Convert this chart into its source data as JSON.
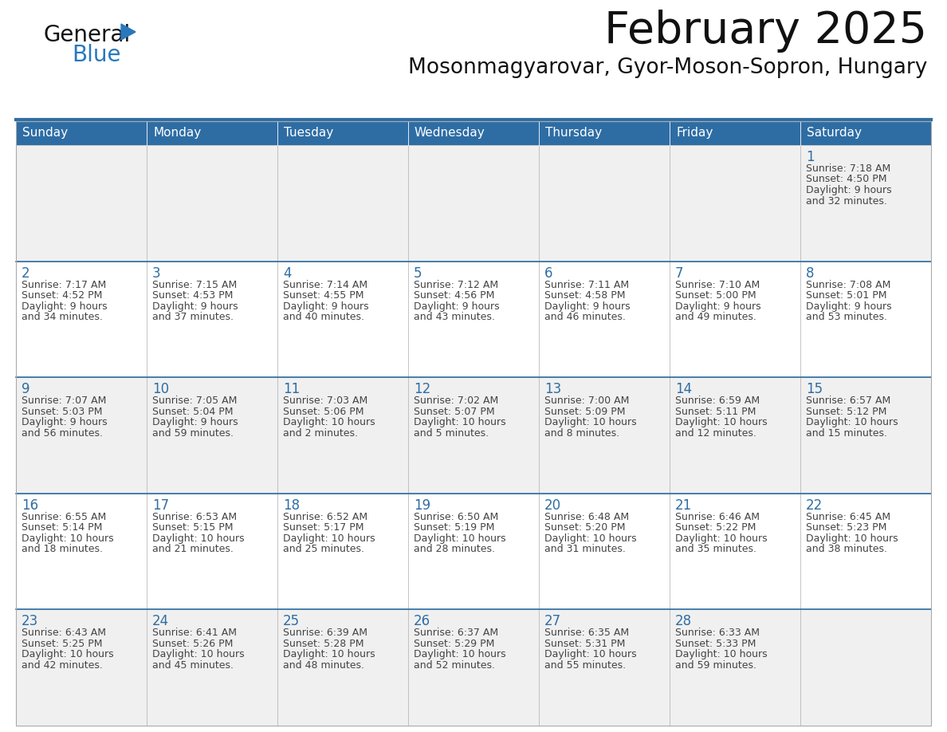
{
  "title": "February 2025",
  "subtitle": "Mosonmagyarovar, Gyor-Moson-Sopron, Hungary",
  "days_of_week": [
    "Sunday",
    "Monday",
    "Tuesday",
    "Wednesday",
    "Thursday",
    "Friday",
    "Saturday"
  ],
  "header_bg": "#2E6DA4",
  "header_text": "#FFFFFF",
  "row_bg_odd": "#F0F0F0",
  "row_bg_even": "#FFFFFF",
  "cell_border": "#AAAAAA",
  "day_number_color": "#2E6DA4",
  "text_color": "#444444",
  "title_color": "#111111",
  "subtitle_color": "#111111",
  "logo_text1_color": "#111111",
  "logo_text2_color": "#2878BE",
  "logo_triangle_color": "#2878BE",
  "calendar_data": [
    [
      null,
      null,
      null,
      null,
      null,
      null,
      {
        "day": 1,
        "sunrise": "7:18 AM",
        "sunset": "4:50 PM",
        "daylight_line1": "9 hours",
        "daylight_line2": "and 32 minutes."
      }
    ],
    [
      {
        "day": 2,
        "sunrise": "7:17 AM",
        "sunset": "4:52 PM",
        "daylight_line1": "9 hours",
        "daylight_line2": "and 34 minutes."
      },
      {
        "day": 3,
        "sunrise": "7:15 AM",
        "sunset": "4:53 PM",
        "daylight_line1": "9 hours",
        "daylight_line2": "and 37 minutes."
      },
      {
        "day": 4,
        "sunrise": "7:14 AM",
        "sunset": "4:55 PM",
        "daylight_line1": "9 hours",
        "daylight_line2": "and 40 minutes."
      },
      {
        "day": 5,
        "sunrise": "7:12 AM",
        "sunset": "4:56 PM",
        "daylight_line1": "9 hours",
        "daylight_line2": "and 43 minutes."
      },
      {
        "day": 6,
        "sunrise": "7:11 AM",
        "sunset": "4:58 PM",
        "daylight_line1": "9 hours",
        "daylight_line2": "and 46 minutes."
      },
      {
        "day": 7,
        "sunrise": "7:10 AM",
        "sunset": "5:00 PM",
        "daylight_line1": "9 hours",
        "daylight_line2": "and 49 minutes."
      },
      {
        "day": 8,
        "sunrise": "7:08 AM",
        "sunset": "5:01 PM",
        "daylight_line1": "9 hours",
        "daylight_line2": "and 53 minutes."
      }
    ],
    [
      {
        "day": 9,
        "sunrise": "7:07 AM",
        "sunset": "5:03 PM",
        "daylight_line1": "9 hours",
        "daylight_line2": "and 56 minutes."
      },
      {
        "day": 10,
        "sunrise": "7:05 AM",
        "sunset": "5:04 PM",
        "daylight_line1": "9 hours",
        "daylight_line2": "and 59 minutes."
      },
      {
        "day": 11,
        "sunrise": "7:03 AM",
        "sunset": "5:06 PM",
        "daylight_line1": "10 hours",
        "daylight_line2": "and 2 minutes."
      },
      {
        "day": 12,
        "sunrise": "7:02 AM",
        "sunset": "5:07 PM",
        "daylight_line1": "10 hours",
        "daylight_line2": "and 5 minutes."
      },
      {
        "day": 13,
        "sunrise": "7:00 AM",
        "sunset": "5:09 PM",
        "daylight_line1": "10 hours",
        "daylight_line2": "and 8 minutes."
      },
      {
        "day": 14,
        "sunrise": "6:59 AM",
        "sunset": "5:11 PM",
        "daylight_line1": "10 hours",
        "daylight_line2": "and 12 minutes."
      },
      {
        "day": 15,
        "sunrise": "6:57 AM",
        "sunset": "5:12 PM",
        "daylight_line1": "10 hours",
        "daylight_line2": "and 15 minutes."
      }
    ],
    [
      {
        "day": 16,
        "sunrise": "6:55 AM",
        "sunset": "5:14 PM",
        "daylight_line1": "10 hours",
        "daylight_line2": "and 18 minutes."
      },
      {
        "day": 17,
        "sunrise": "6:53 AM",
        "sunset": "5:15 PM",
        "daylight_line1": "10 hours",
        "daylight_line2": "and 21 minutes."
      },
      {
        "day": 18,
        "sunrise": "6:52 AM",
        "sunset": "5:17 PM",
        "daylight_line1": "10 hours",
        "daylight_line2": "and 25 minutes."
      },
      {
        "day": 19,
        "sunrise": "6:50 AM",
        "sunset": "5:19 PM",
        "daylight_line1": "10 hours",
        "daylight_line2": "and 28 minutes."
      },
      {
        "day": 20,
        "sunrise": "6:48 AM",
        "sunset": "5:20 PM",
        "daylight_line1": "10 hours",
        "daylight_line2": "and 31 minutes."
      },
      {
        "day": 21,
        "sunrise": "6:46 AM",
        "sunset": "5:22 PM",
        "daylight_line1": "10 hours",
        "daylight_line2": "and 35 minutes."
      },
      {
        "day": 22,
        "sunrise": "6:45 AM",
        "sunset": "5:23 PM",
        "daylight_line1": "10 hours",
        "daylight_line2": "and 38 minutes."
      }
    ],
    [
      {
        "day": 23,
        "sunrise": "6:43 AM",
        "sunset": "5:25 PM",
        "daylight_line1": "10 hours",
        "daylight_line2": "and 42 minutes."
      },
      {
        "day": 24,
        "sunrise": "6:41 AM",
        "sunset": "5:26 PM",
        "daylight_line1": "10 hours",
        "daylight_line2": "and 45 minutes."
      },
      {
        "day": 25,
        "sunrise": "6:39 AM",
        "sunset": "5:28 PM",
        "daylight_line1": "10 hours",
        "daylight_line2": "and 48 minutes."
      },
      {
        "day": 26,
        "sunrise": "6:37 AM",
        "sunset": "5:29 PM",
        "daylight_line1": "10 hours",
        "daylight_line2": "and 52 minutes."
      },
      {
        "day": 27,
        "sunrise": "6:35 AM",
        "sunset": "5:31 PM",
        "daylight_line1": "10 hours",
        "daylight_line2": "and 55 minutes."
      },
      {
        "day": 28,
        "sunrise": "6:33 AM",
        "sunset": "5:33 PM",
        "daylight_line1": "10 hours",
        "daylight_line2": "and 59 minutes."
      },
      null
    ]
  ]
}
